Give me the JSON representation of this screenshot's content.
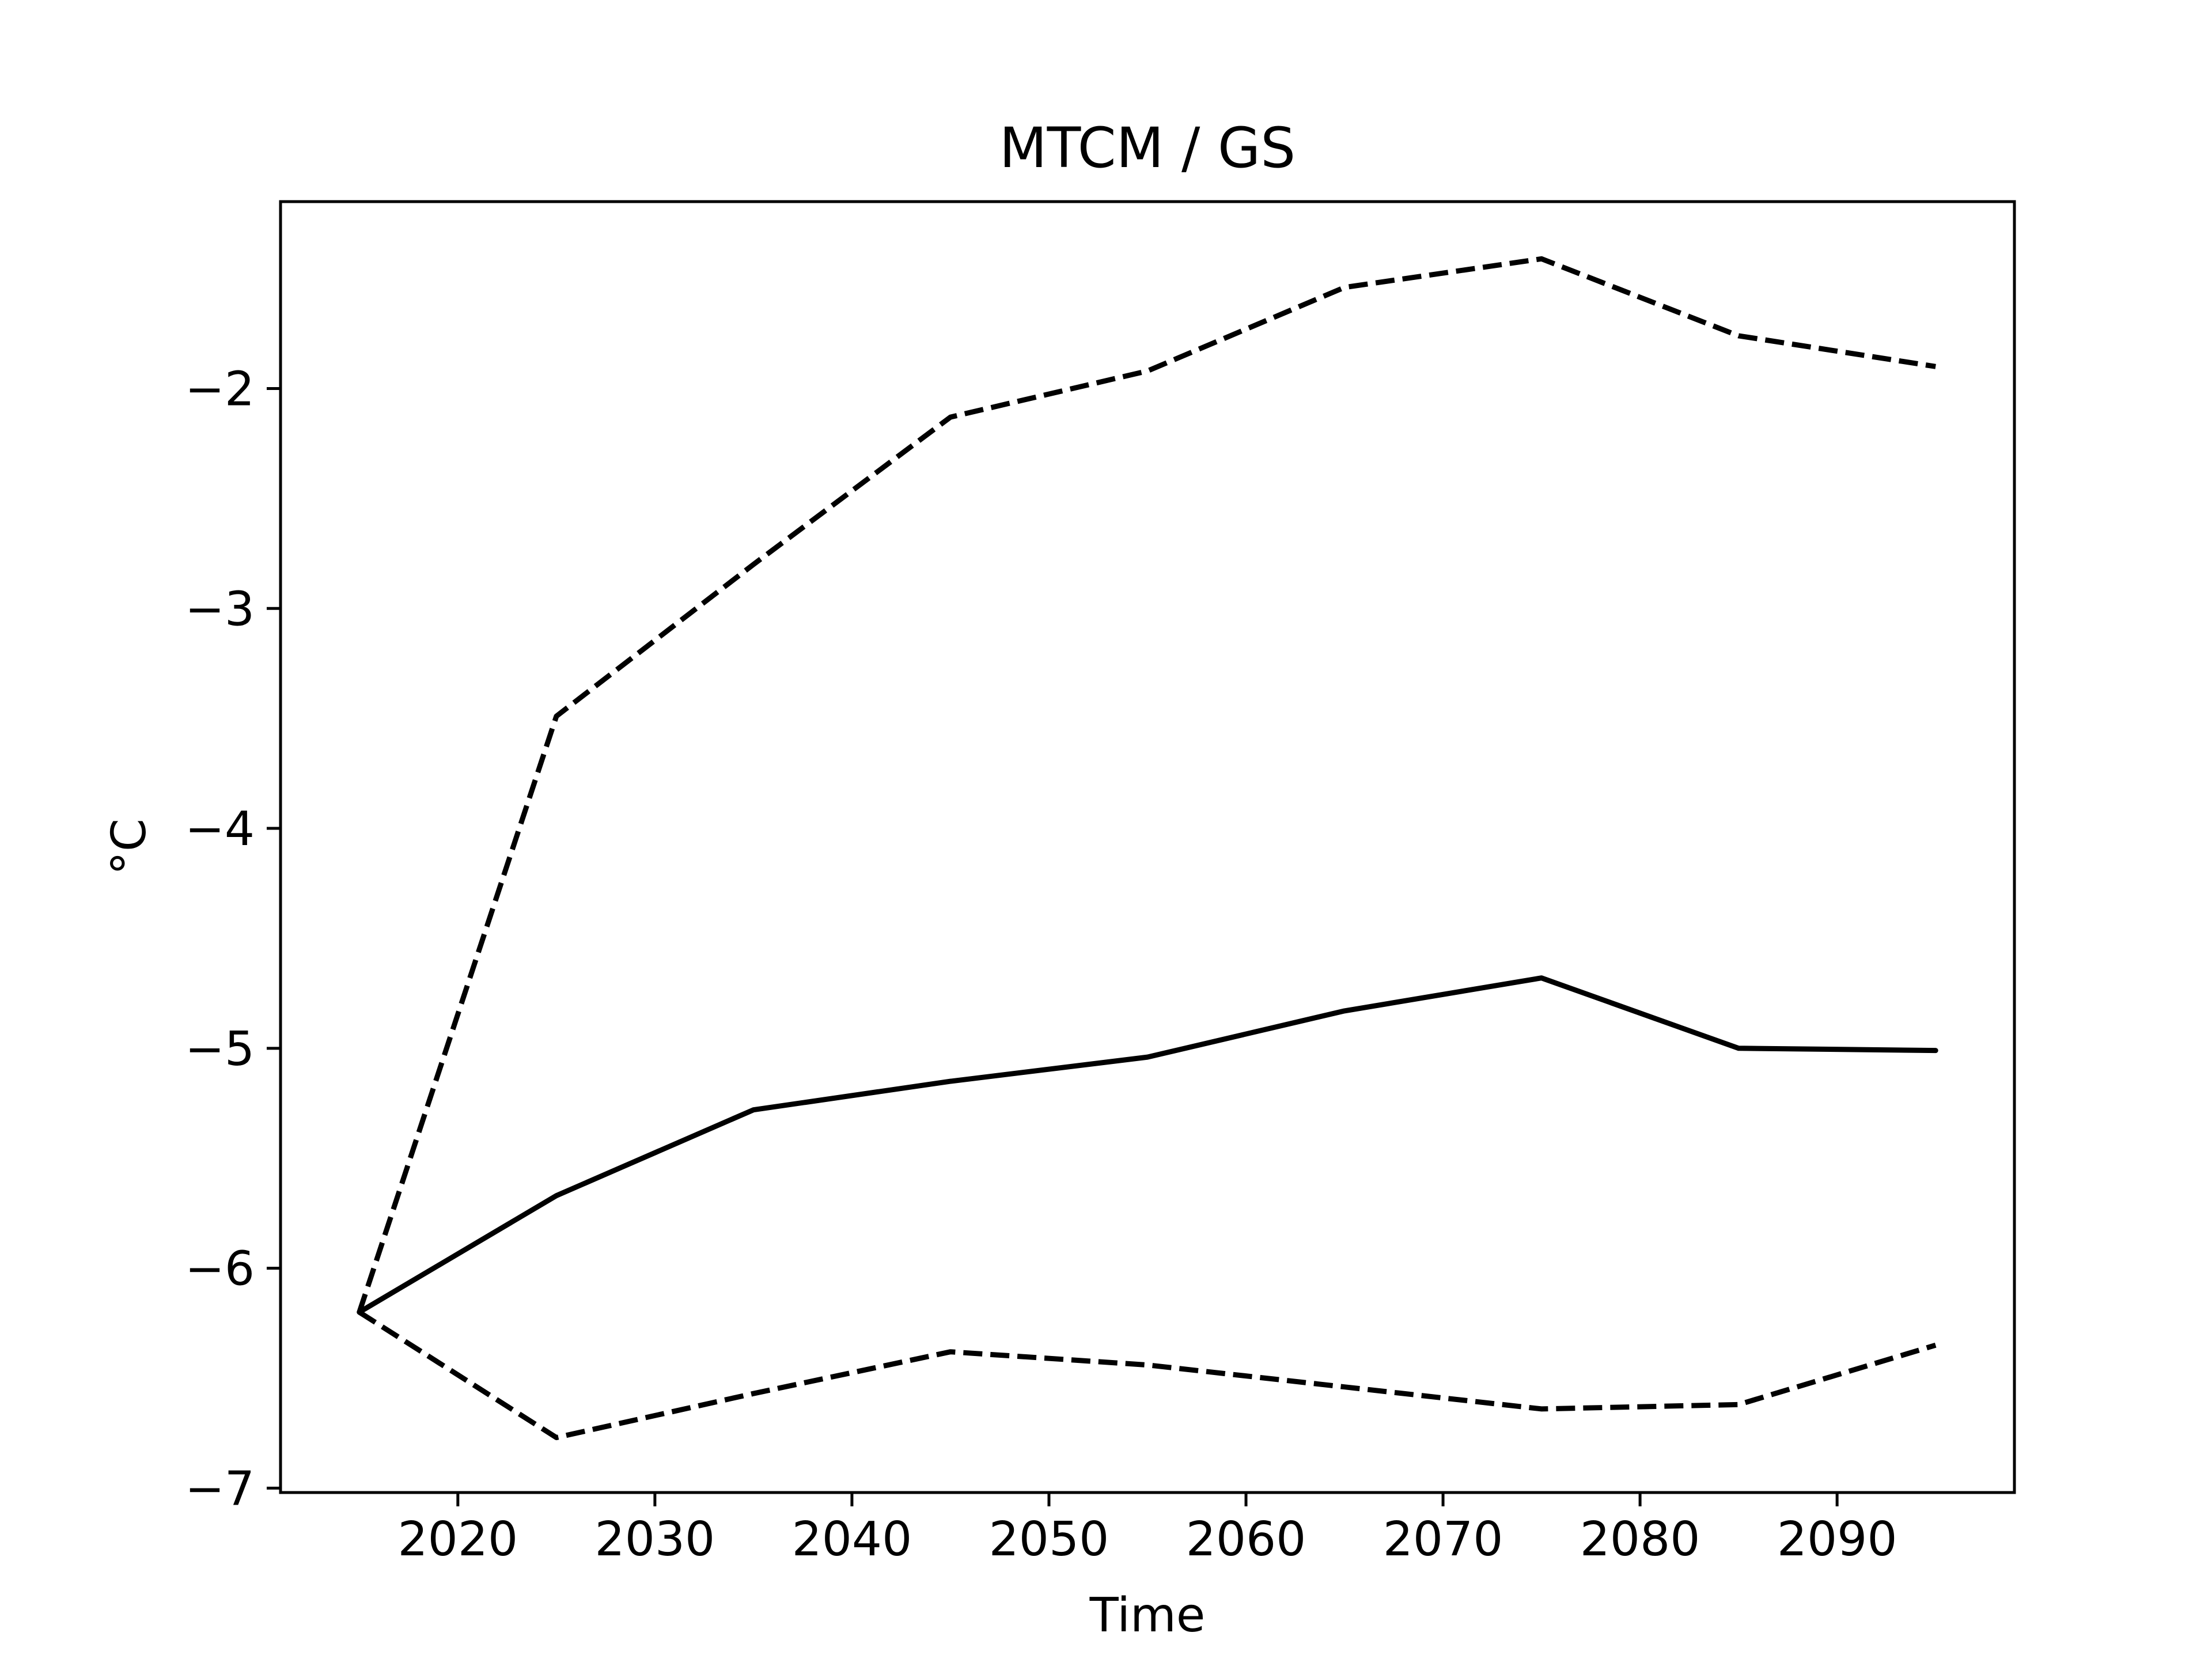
{
  "chart_data": {
    "type": "line",
    "title": "MTCM / GS",
    "xlabel": "Time",
    "ylabel": "°C",
    "xlim": [
      2011,
      2099
    ],
    "ylim": [
      -7.02,
      -1.15
    ],
    "xticks": [
      2020,
      2030,
      2040,
      2050,
      2060,
      2070,
      2080,
      2090
    ],
    "xtick_labels": [
      "2020",
      "2030",
      "2040",
      "2050",
      "2060",
      "2070",
      "2080",
      "2090"
    ],
    "yticks": [
      -7,
      -6,
      -5,
      -4,
      -3,
      -2
    ],
    "ytick_labels": [
      "−7",
      "−6",
      "−5",
      "−4",
      "−3",
      "−2"
    ],
    "grid": false,
    "legend": "none",
    "colors": {
      "line": "#000000",
      "frame": "#000000",
      "background": "#ffffff"
    },
    "x": [
      2015,
      2025,
      2035,
      2045,
      2055,
      2065,
      2075,
      2085,
      2095
    ],
    "series": [
      {
        "style": "solid",
        "values": [
          -6.2,
          -5.67,
          -5.28,
          -5.15,
          -5.04,
          -4.83,
          -4.68,
          -5.0,
          -5.01
        ]
      },
      {
        "style": "dashed",
        "values": [
          -6.2,
          -3.49,
          -2.8,
          -2.13,
          -1.92,
          -1.54,
          -1.41,
          -1.76,
          -1.9
        ]
      },
      {
        "style": "dashed",
        "values": [
          -6.2,
          -6.77,
          -6.57,
          -6.38,
          -6.44,
          -6.54,
          -6.64,
          -6.62,
          -6.35
        ]
      }
    ]
  }
}
